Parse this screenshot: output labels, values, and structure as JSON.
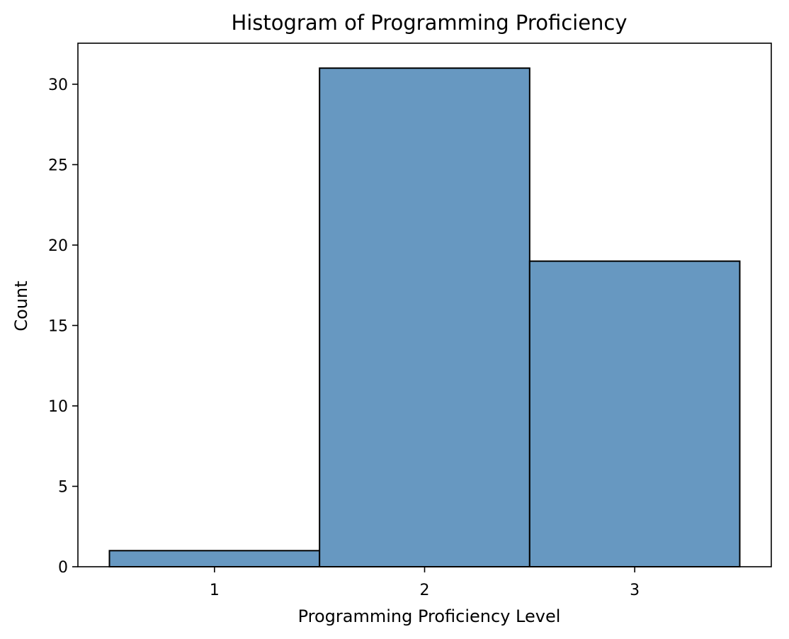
{
  "chart_data": {
    "type": "bar",
    "subtype": "histogram",
    "title": "Histogram of Programming Proficiency",
    "xlabel": "Programming Proficiency Level",
    "ylabel": "Count",
    "categories": [
      "1",
      "2",
      "3"
    ],
    "x": [
      1,
      2,
      3
    ],
    "bin_width": 1,
    "values": [
      1,
      31,
      19
    ],
    "xlim": [
      0.35,
      3.65
    ],
    "ylim": [
      0,
      32.55
    ],
    "x_ticks": [
      1,
      2,
      3
    ],
    "y_ticks": [
      0,
      5,
      10,
      15,
      20,
      25,
      30
    ],
    "grid": false,
    "legend": "none",
    "colors": {
      "bar_fill": "#6798c1",
      "bar_edge": "#000000",
      "axes": "#000000",
      "background": "#ffffff"
    }
  }
}
